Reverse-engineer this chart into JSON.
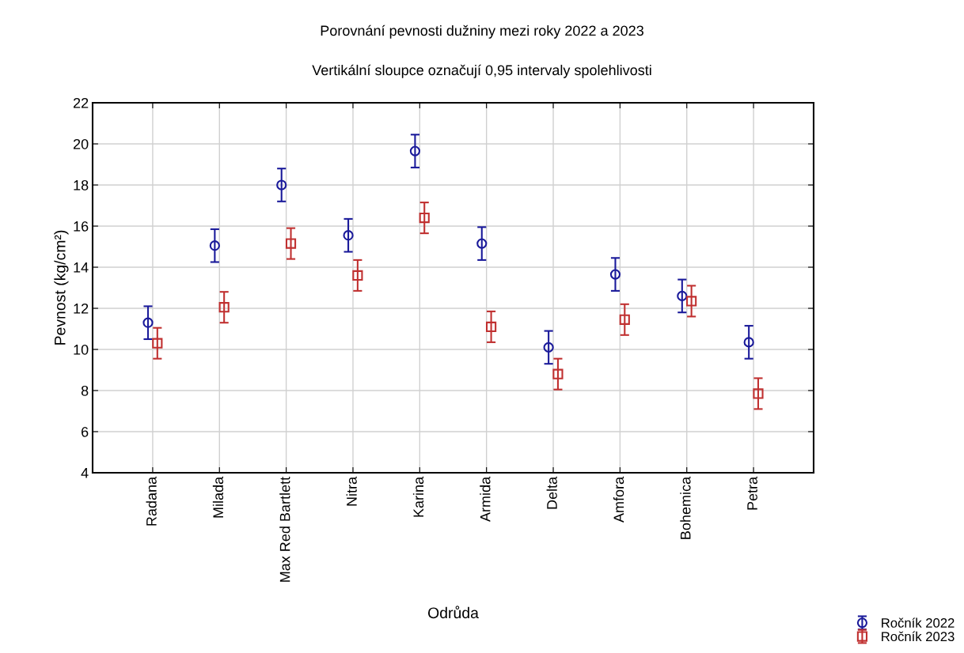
{
  "chart_data": {
    "type": "scatter",
    "title": "Porovnání pevnosti dužniny mezi roky 2022 a 2023",
    "subtitle": "Vertikální sloupce označují 0,95 intervaly spolehlivosti",
    "xlabel": "Odrůda",
    "ylabel": "Pevnost (kg/cm²)",
    "categories": [
      "Radana",
      "Milada",
      "Max Red Bartlett",
      "Nitra",
      "Karina",
      "Armida",
      "Delta",
      "Amfora",
      "Bohemica",
      "Petra"
    ],
    "series": [
      {
        "name": "Ročník 2022",
        "color": "#1a1a9a",
        "marker": "circle",
        "values": [
          11.3,
          15.05,
          18.0,
          15.55,
          19.65,
          15.15,
          10.1,
          13.65,
          12.6,
          10.35
        ],
        "errors": [
          0.8,
          0.8,
          0.8,
          0.8,
          0.8,
          0.8,
          0.8,
          0.8,
          0.8,
          0.8
        ]
      },
      {
        "name": "Ročník 2023",
        "color": "#c03030",
        "marker": "square",
        "values": [
          10.3,
          12.05,
          15.15,
          13.6,
          16.4,
          11.1,
          8.8,
          11.45,
          12.35,
          7.85
        ],
        "errors": [
          0.75,
          0.75,
          0.75,
          0.75,
          0.75,
          0.75,
          0.75,
          0.75,
          0.75,
          0.75
        ]
      }
    ],
    "ylim": [
      4,
      22
    ],
    "yticks": [
      4,
      6,
      8,
      10,
      12,
      14,
      16,
      18,
      20,
      22
    ],
    "grid": true,
    "legend": "bottom right"
  }
}
